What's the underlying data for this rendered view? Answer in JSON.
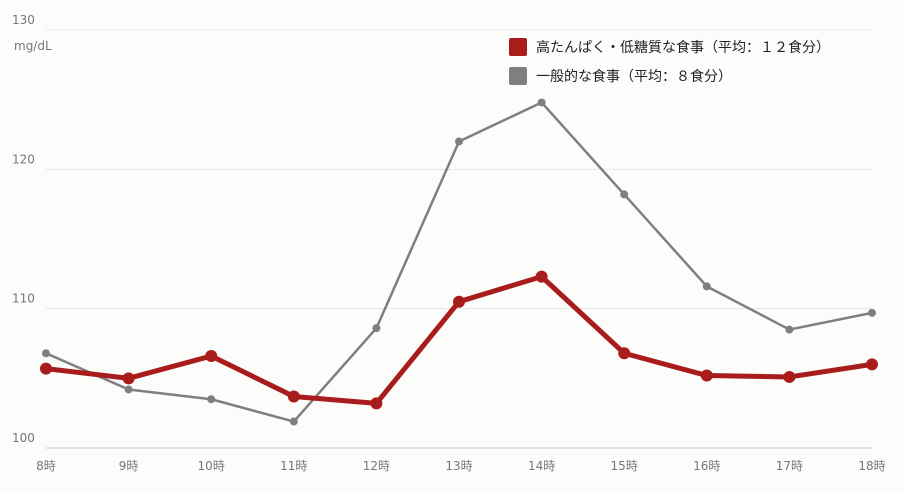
{
  "chart_data": {
    "type": "line",
    "y_unit": "mg/dL",
    "categories": [
      "8時",
      "9時",
      "10時",
      "11時",
      "12時",
      "13時",
      "14時",
      "15時",
      "16時",
      "17時",
      "18時"
    ],
    "series": [
      {
        "name": "一般的な食事（平均：８食分）",
        "color": "#7f7f7f",
        "values": [
          106.8,
          104.2,
          103.5,
          101.9,
          108.6,
          122.0,
          124.8,
          118.2,
          111.6,
          108.5,
          109.7
        ]
      },
      {
        "name": "高たんぱく・低糖質な食事（平均：１２食分）",
        "color": "#a81c1c",
        "values": [
          105.7,
          105.0,
          106.6,
          103.7,
          103.2,
          110.5,
          112.3,
          106.8,
          105.2,
          105.1,
          106.0
        ]
      }
    ],
    "ylim": [
      100,
      130
    ],
    "yticks": [
      100,
      110,
      120,
      130
    ],
    "grid": true
  }
}
